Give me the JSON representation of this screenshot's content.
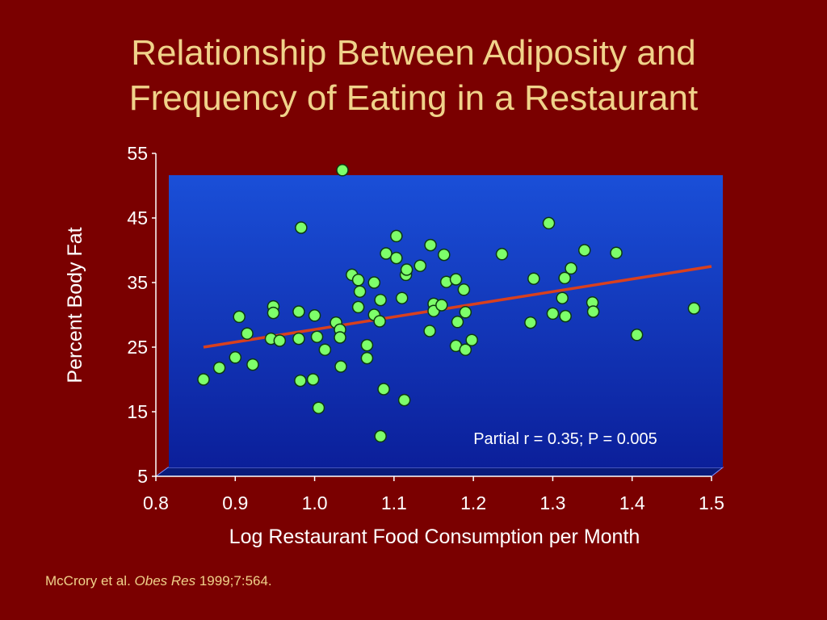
{
  "title_line1": "Relationship Between Adiposity and",
  "title_line2": "Frequency of Eating in a Restaurant",
  "citation": {
    "authors": "McCrory et al. ",
    "journal": "Obes Res",
    "ref": " 1999;7:564."
  },
  "colors": {
    "background": "#7a0000",
    "title": "#f0d28a",
    "plot_top": "#1a4fd8",
    "plot_bottom": "#0b1f9a",
    "point": "#7dff6a",
    "regression": "#d9401e"
  },
  "chart_data": {
    "type": "scatter",
    "xlabel": "Log Restaurant Food Consumption per Month",
    "ylabel": "Percent Body Fat",
    "xlim": [
      0.8,
      1.5
    ],
    "ylim": [
      5,
      55
    ],
    "xticks": [
      "0.8",
      "0.9",
      "1.0",
      "1.1",
      "1.2",
      "1.3",
      "1.4",
      "1.5"
    ],
    "yticks": [
      "5",
      "15",
      "25",
      "35",
      "45",
      "55"
    ],
    "annotation": "Partial r = 0.35; P = 0.005",
    "regression": {
      "x": [
        0.86,
        1.5
      ],
      "y": [
        25,
        37.5
      ]
    },
    "points": [
      [
        0.86,
        20
      ],
      [
        0.88,
        21.8
      ],
      [
        0.9,
        23.4
      ],
      [
        0.905,
        29.7
      ],
      [
        0.915,
        27.1
      ],
      [
        0.922,
        22.3
      ],
      [
        0.945,
        26.3
      ],
      [
        0.948,
        31.3
      ],
      [
        0.948,
        30.3
      ],
      [
        0.956,
        26
      ],
      [
        0.983,
        43.5
      ],
      [
        0.98,
        30.5
      ],
      [
        0.98,
        26.3
      ],
      [
        0.982,
        19.8
      ],
      [
        0.998,
        20
      ],
      [
        1.0,
        29.9
      ],
      [
        1.003,
        26.6
      ],
      [
        1.005,
        15.6
      ],
      [
        1.013,
        24.6
      ],
      [
        1.027,
        28.8
      ],
      [
        1.032,
        27.7
      ],
      [
        1.032,
        26.5
      ],
      [
        1.033,
        22
      ],
      [
        1.035,
        52.4
      ],
      [
        1.047,
        36.2
      ],
      [
        1.055,
        35.4
      ],
      [
        1.057,
        33.6
      ],
      [
        1.055,
        31.2
      ],
      [
        1.066,
        25.3
      ],
      [
        1.066,
        23.3
      ],
      [
        1.075,
        35
      ],
      [
        1.075,
        30
      ],
      [
        1.083,
        32.3
      ],
      [
        1.082,
        29
      ],
      [
        1.083,
        11.2
      ],
      [
        1.087,
        18.5
      ],
      [
        1.09,
        39.5
      ],
      [
        1.103,
        42.2
      ],
      [
        1.103,
        38.8
      ],
      [
        1.11,
        32.6
      ],
      [
        1.113,
        16.8
      ],
      [
        1.115,
        36.2
      ],
      [
        1.116,
        37
      ],
      [
        1.133,
        37.6
      ],
      [
        1.146,
        40.8
      ],
      [
        1.145,
        27.5
      ],
      [
        1.15,
        31.7
      ],
      [
        1.15,
        30.6
      ],
      [
        1.16,
        31.5
      ],
      [
        1.163,
        39.3
      ],
      [
        1.166,
        35.1
      ],
      [
        1.178,
        35.5
      ],
      [
        1.178,
        25.2
      ],
      [
        1.18,
        28.9
      ],
      [
        1.188,
        33.9
      ],
      [
        1.19,
        24.6
      ],
      [
        1.19,
        30.4
      ],
      [
        1.198,
        26.1
      ],
      [
        1.236,
        39.4
      ],
      [
        1.272,
        28.8
      ],
      [
        1.276,
        35.6
      ],
      [
        1.295,
        44.2
      ],
      [
        1.3,
        30.2
      ],
      [
        1.312,
        32.6
      ],
      [
        1.315,
        35.7
      ],
      [
        1.316,
        29.8
      ],
      [
        1.323,
        37.2
      ],
      [
        1.34,
        40
      ],
      [
        1.35,
        31.9
      ],
      [
        1.351,
        30.5
      ],
      [
        1.38,
        39.6
      ],
      [
        1.406,
        26.9
      ],
      [
        1.478,
        31
      ]
    ]
  }
}
